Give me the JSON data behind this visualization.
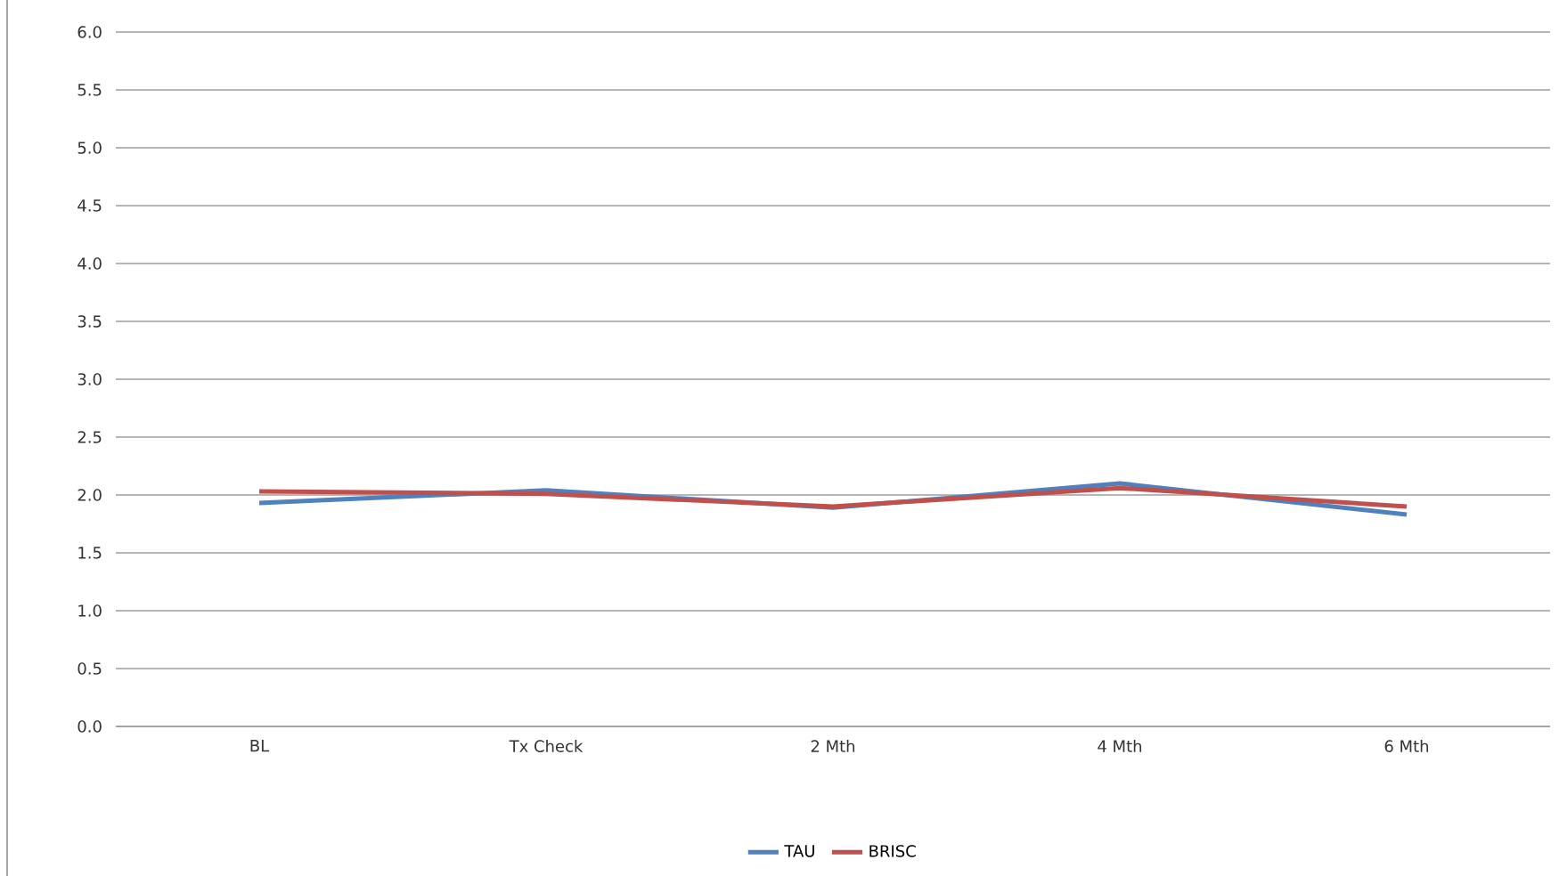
{
  "chart_data": {
    "type": "line",
    "categories": [
      "BL",
      "Tx Check",
      "2 Mth",
      "4 Mth",
      "6 Mth"
    ],
    "series": [
      {
        "name": "TAU",
        "color": "#4f81bd",
        "values": [
          1.93,
          2.04,
          1.89,
          2.1,
          1.83
        ]
      },
      {
        "name": "BRISC",
        "color": "#c0504d",
        "values": [
          2.03,
          2.01,
          1.9,
          2.06,
          1.9
        ]
      }
    ],
    "ylim": [
      0,
      6
    ],
    "yticks": [
      {
        "value": 0,
        "label": "0.0"
      },
      {
        "value": 0.5,
        "label": "0.5"
      },
      {
        "value": 1,
        "label": "1.0"
      },
      {
        "value": 1.5,
        "label": "1.5"
      },
      {
        "value": 2,
        "label": "2.0"
      },
      {
        "value": 2.5,
        "label": "2.5"
      },
      {
        "value": 3,
        "label": "3.0"
      },
      {
        "value": 3.5,
        "label": "3.5"
      },
      {
        "value": 4,
        "label": "4.0"
      },
      {
        "value": 4.5,
        "label": "4.5"
      },
      {
        "value": 5,
        "label": "5.0"
      },
      {
        "value": 5.5,
        "label": "5.5"
      },
      {
        "value": 6,
        "label": "6.0"
      }
    ],
    "grid": "y",
    "legend": "bottom",
    "marker": "none",
    "line_style": "solid"
  }
}
